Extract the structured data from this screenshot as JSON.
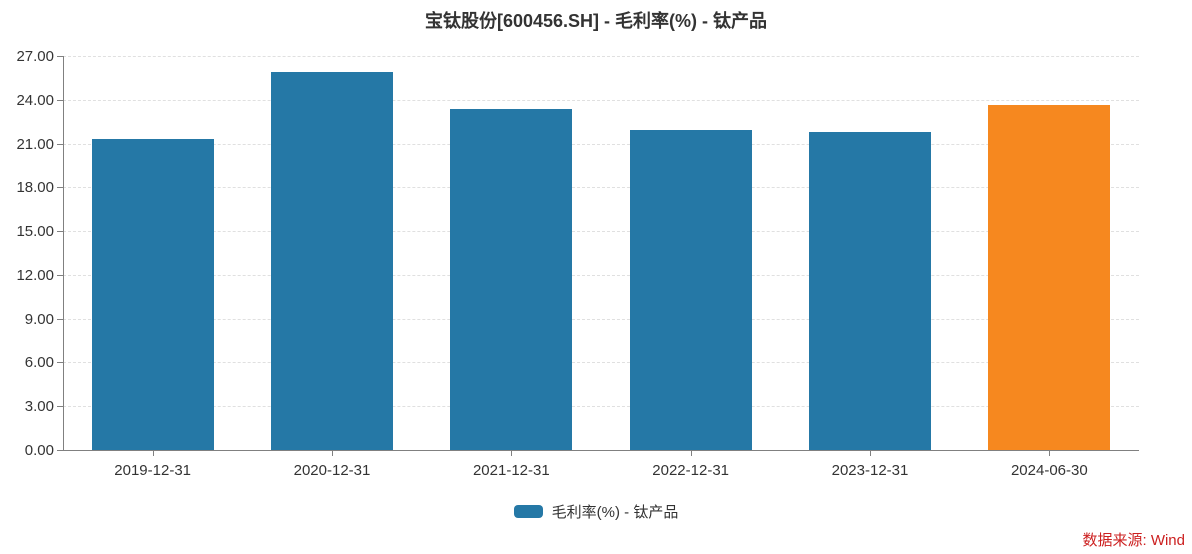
{
  "title": "宝钛股份[600456.SH] - 毛利率(%) - 钛产品",
  "legend": {
    "label": "毛利率(%) - 钛产品",
    "swatch_color": "#2578a6"
  },
  "source_note": "数据来源: Wind",
  "colors": {
    "bar": "#2578a6",
    "highlight_bar": "#f6881f",
    "grid": "#e0e0e0",
    "axis": "#808080",
    "text": "#333333",
    "source_text": "#cc2020"
  },
  "chart_data": {
    "type": "bar",
    "title": "宝钛股份[600456.SH] - 毛利率(%) - 钛产品",
    "categories": [
      "2019-12-31",
      "2020-12-31",
      "2021-12-31",
      "2022-12-31",
      "2023-12-31",
      "2024-06-30"
    ],
    "series": [
      {
        "name": "毛利率(%) - 钛产品",
        "values": [
          21.3,
          25.9,
          23.4,
          21.9,
          21.8,
          23.65
        ]
      }
    ],
    "bar_colors": [
      "#2578a6",
      "#2578a6",
      "#2578a6",
      "#2578a6",
      "#2578a6",
      "#f6881f"
    ],
    "xlabel": "",
    "ylabel": "",
    "ylim": [
      0,
      27
    ],
    "ytick_step": 3,
    "ytick_labels": [
      "0.00",
      "3.00",
      "6.00",
      "9.00",
      "12.00",
      "15.00",
      "18.00",
      "21.00",
      "24.00",
      "27.00"
    ],
    "grid": "horizontal-dashed",
    "legend_position": "bottom-center",
    "highlight_index": 5
  }
}
